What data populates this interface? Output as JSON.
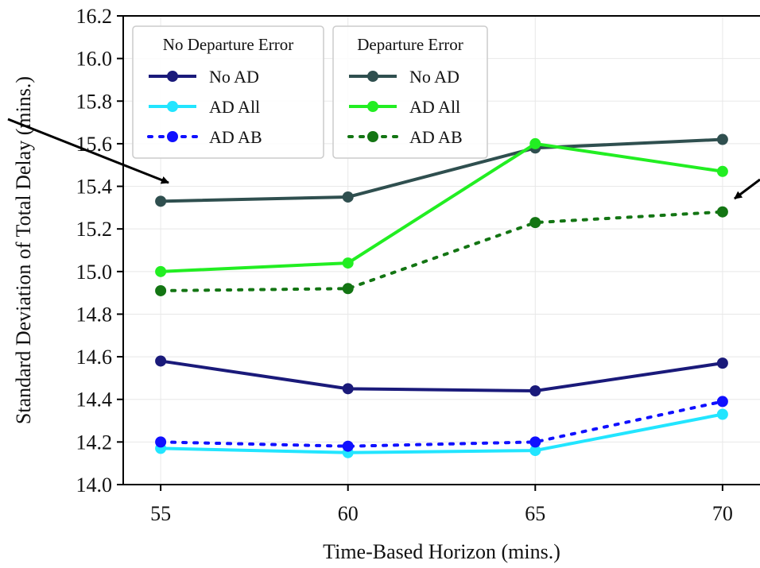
{
  "chart_data": {
    "type": "line",
    "x": [
      55,
      60,
      65,
      70
    ],
    "xlabel": "Time-Based Horizon (mins.)",
    "ylabel": "Standard Deviation of Total Delay (mins.)",
    "xlim": [
      54,
      71
    ],
    "ylim": [
      14.0,
      16.2
    ],
    "xticks": [
      "55",
      "60",
      "65",
      "70"
    ],
    "yticks": [
      "14.0",
      "14.2",
      "14.4",
      "14.6",
      "14.8",
      "15.0",
      "15.2",
      "15.4",
      "15.6",
      "15.8",
      "16.0",
      "16.2"
    ],
    "grid": true,
    "legends": [
      {
        "title": "No Departure Error",
        "placement": "top-left",
        "entries": [
          "No AD",
          "AD All",
          "AD AB"
        ]
      },
      {
        "title": "Departure Error",
        "placement": "top-center",
        "entries": [
          "No AD",
          "AD All",
          "AD AB"
        ]
      }
    ],
    "series": [
      {
        "name": "No AD",
        "group": "No Departure Error",
        "color": "#1a1a7a",
        "dash": "solid",
        "values": [
          14.58,
          14.45,
          14.44,
          14.57
        ]
      },
      {
        "name": "AD All",
        "group": "No Departure Error",
        "color": "#22e5ff",
        "dash": "solid",
        "values": [
          14.17,
          14.15,
          14.16,
          14.33
        ]
      },
      {
        "name": "AD AB",
        "group": "No Departure Error",
        "color": "#1010ff",
        "dash": "dotted",
        "values": [
          14.2,
          14.18,
          14.2,
          14.39
        ]
      },
      {
        "name": "No AD",
        "group": "Departure Error",
        "color": "#2f4f4f",
        "dash": "solid",
        "values": [
          15.33,
          15.35,
          15.58,
          15.62
        ]
      },
      {
        "name": "AD All",
        "group": "Departure Error",
        "color": "#22ee22",
        "dash": "solid",
        "values": [
          15.0,
          15.04,
          15.6,
          15.47
        ]
      },
      {
        "name": "AD AB",
        "group": "Departure Error",
        "color": "#137513",
        "dash": "dotted",
        "values": [
          14.91,
          14.92,
          15.23,
          15.28
        ]
      }
    ]
  }
}
